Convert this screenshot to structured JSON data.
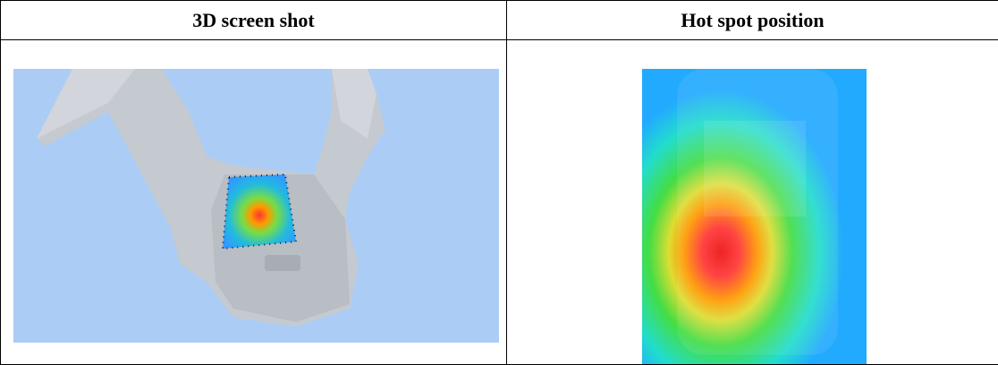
{
  "table": {
    "headers": [
      "3D screen shot",
      "Hot spot position"
    ]
  }
}
